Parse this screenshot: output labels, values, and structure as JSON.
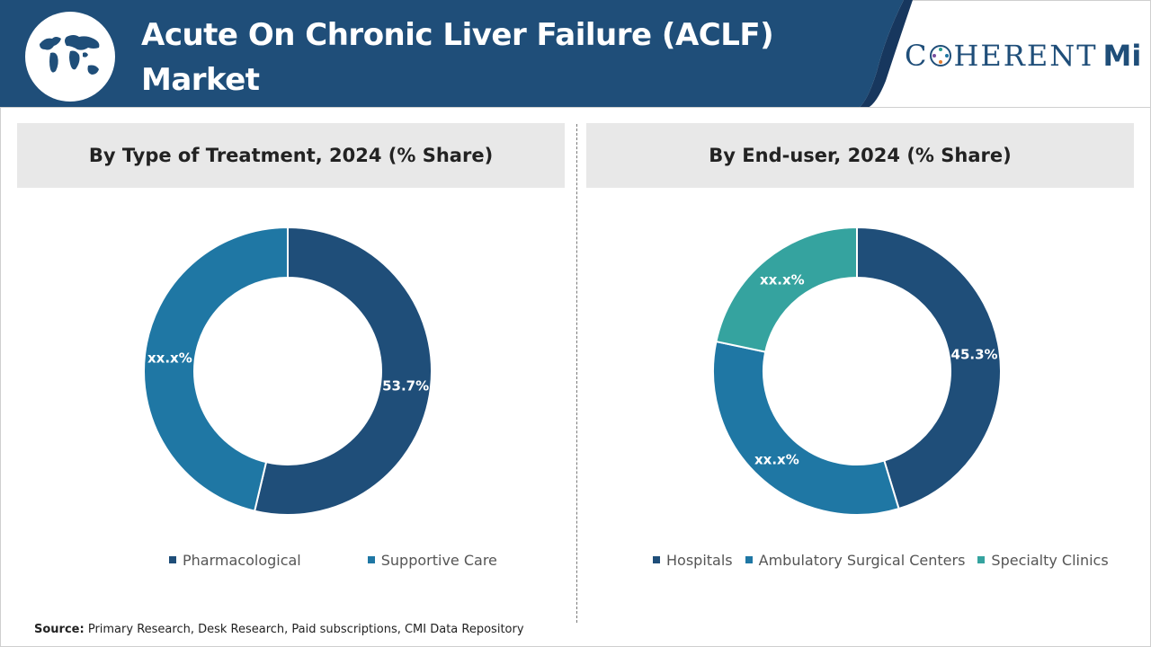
{
  "header": {
    "title": "Acute On Chronic Liver Failure (ACLF) Market",
    "logo_prefix": "C",
    "logo_suffix": "HERENT",
    "logo_mi": "Mi",
    "colors": {
      "band": "#1f4e79",
      "band_dark": "#17375e"
    }
  },
  "chart_data": [
    {
      "type": "pie",
      "title": "By Type of Treatment, 2024 (% Share)",
      "slices": [
        {
          "name": "Pharmacological",
          "value": 53.7,
          "label": "53.7%",
          "color": "#1f4e79"
        },
        {
          "name": "Supportive Care",
          "value": 46.3,
          "label": "xx.x%",
          "color": "#1f77a4"
        }
      ],
      "legend_position": "bottom"
    },
    {
      "type": "pie",
      "title": "By End-user, 2024 (% Share)",
      "slices": [
        {
          "name": "Hospitals",
          "value": 45.3,
          "label": "45.3%",
          "color": "#1f4e79"
        },
        {
          "name": "Ambulatory Surgical Centers",
          "value": 33.0,
          "label": "xx.x%",
          "color": "#1f77a4"
        },
        {
          "name": "Specialty Clinics",
          "value": 21.7,
          "label": "xx.x%",
          "color": "#35a39f"
        }
      ],
      "legend_position": "bottom"
    }
  ],
  "footer": {
    "source_label": "Source:",
    "source_text": "Primary Research, Desk Research, Paid subscriptions, CMI Data Repository"
  }
}
